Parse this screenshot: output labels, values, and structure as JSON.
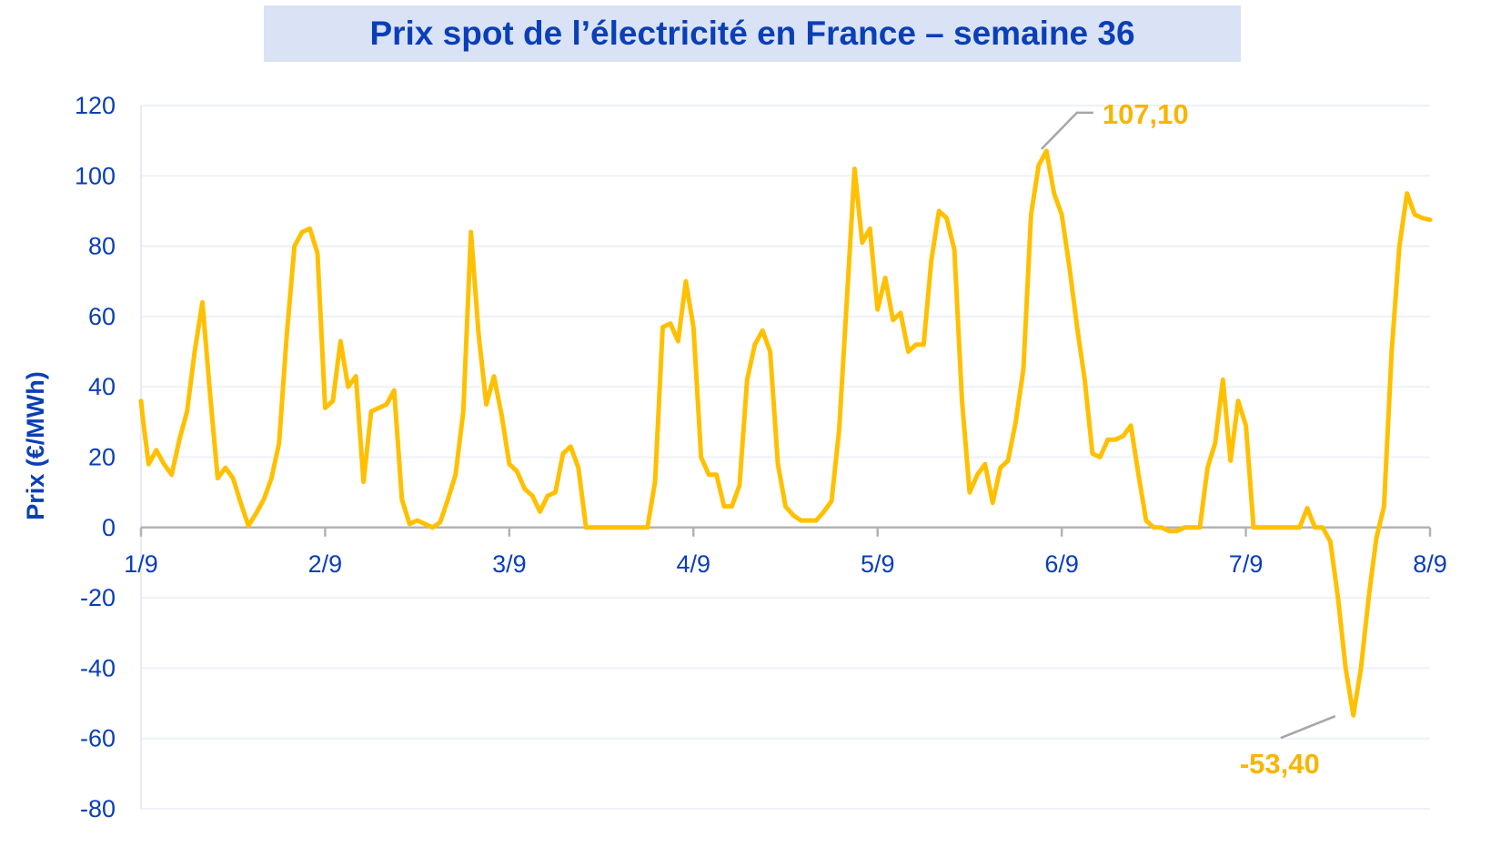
{
  "chart_data": {
    "type": "line",
    "title": "Prix spot de l’électricité en France – semaine 36",
    "xlabel": "",
    "ylabel": "Prix (€/MWh)",
    "ylim": [
      -80,
      120
    ],
    "y_ticks": [
      "-80",
      "-60",
      "-40",
      "-20",
      "0",
      "20",
      "40",
      "60",
      "80",
      "100",
      "120"
    ],
    "x_range": [
      0,
      168
    ],
    "x_ticks": [
      {
        "label": "1/9",
        "x": 0
      },
      {
        "label": "2/9",
        "x": 24
      },
      {
        "label": "3/9",
        "x": 48
      },
      {
        "label": "4/9",
        "x": 72
      },
      {
        "label": "5/9",
        "x": 96
      },
      {
        "label": "6/9",
        "x": 120
      },
      {
        "label": "7/9",
        "x": 144
      },
      {
        "label": "8/9",
        "x": 168
      }
    ],
    "grid": true,
    "line_color": "#ffc000",
    "series": [
      {
        "name": "Prix spot",
        "x": [
          0,
          0.3,
          1,
          2,
          3,
          4,
          5,
          6,
          7,
          8,
          9,
          10,
          11,
          12,
          13,
          14,
          15,
          16,
          17,
          18,
          19,
          20,
          21,
          22,
          23,
          24,
          25,
          26,
          27,
          28,
          29,
          30,
          31,
          32,
          33,
          34,
          35,
          36,
          37,
          38,
          39,
          40,
          41,
          42,
          43,
          44,
          45,
          46,
          47,
          48,
          49,
          50,
          51,
          52,
          53,
          54,
          55,
          56,
          57,
          58,
          59,
          60,
          61,
          62,
          63,
          64,
          65,
          66,
          67,
          68,
          69,
          70,
          71,
          72,
          73,
          74,
          75,
          76,
          77,
          78,
          79,
          80,
          81,
          82,
          83,
          84,
          85,
          86,
          87,
          88,
          89,
          90,
          91,
          92,
          93,
          94,
          95,
          96,
          97,
          98,
          99,
          100,
          101,
          102,
          103,
          104,
          105,
          106,
          107,
          108,
          109,
          110,
          111,
          112,
          113,
          114,
          115,
          116,
          117,
          118,
          119,
          120,
          121,
          122,
          123,
          124,
          125,
          126,
          127,
          128,
          129,
          130,
          131,
          132,
          133,
          134,
          135,
          136,
          137,
          138,
          139,
          140,
          141,
          142,
          143,
          144,
          145,
          146,
          147,
          148,
          149,
          150,
          151,
          152,
          153,
          154,
          155,
          156,
          157,
          158,
          159,
          160,
          161,
          162,
          163,
          164,
          165,
          166,
          167,
          168
        ],
        "values": [
          36,
          30,
          18,
          22,
          18,
          15,
          25,
          33,
          50,
          64,
          38,
          14,
          17,
          14,
          7,
          0.5,
          4,
          8,
          14,
          24,
          55,
          80,
          84,
          85,
          78,
          34,
          36,
          53,
          40,
          43,
          13,
          33,
          34,
          35,
          39,
          8,
          1,
          2,
          1,
          0,
          1.5,
          8,
          15,
          33,
          84,
          55,
          35,
          43,
          32,
          18,
          16,
          11,
          9,
          4.5,
          9,
          10,
          21,
          23,
          17,
          0,
          0,
          0,
          0,
          0,
          0,
          0,
          0,
          0,
          13,
          57,
          58,
          53,
          70,
          57,
          20,
          15,
          15,
          6,
          6,
          12,
          42,
          52,
          56,
          50,
          18,
          6,
          3.5,
          2,
          2,
          2,
          4.5,
          7.5,
          28,
          65,
          102,
          81,
          85,
          62,
          71,
          59,
          61,
          50,
          52,
          52,
          76,
          90,
          88,
          79,
          36,
          10,
          15,
          18,
          7,
          17,
          19,
          30,
          45,
          89,
          103,
          107.1,
          95,
          89,
          74,
          57,
          42,
          21,
          20,
          25,
          25,
          26,
          29,
          15,
          2,
          0,
          0,
          -1,
          -1,
          0,
          0,
          0,
          17,
          24,
          42,
          19,
          36,
          29,
          0,
          0,
          0,
          0,
          0,
          0,
          0,
          5.5,
          0,
          0,
          -4,
          -20,
          -40,
          -53.4,
          -40,
          -20,
          -3,
          6,
          50,
          80,
          95,
          89,
          88,
          87.5
        ]
      }
    ],
    "annotations": [
      {
        "label": "107,10",
        "x": 117,
        "value": 107.1
      },
      {
        "label": "-53,40",
        "x": 156,
        "value": -53.4
      }
    ]
  }
}
